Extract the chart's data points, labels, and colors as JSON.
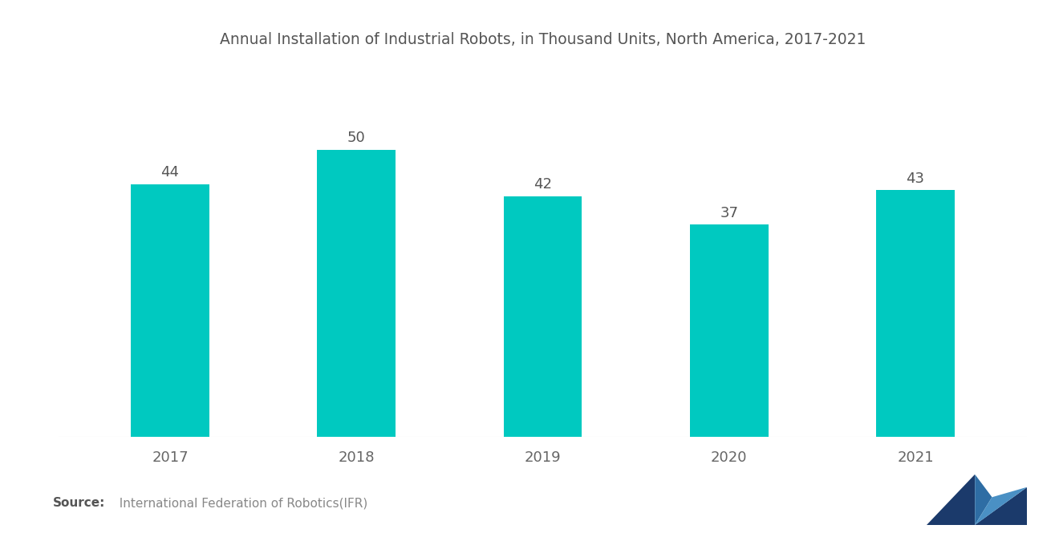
{
  "title": "Annual Installation of Industrial Robots, in Thousand Units, North America, 2017-2021",
  "categories": [
    "2017",
    "2018",
    "2019",
    "2020",
    "2021"
  ],
  "values": [
    44,
    50,
    42,
    37,
    43
  ],
  "bar_color": "#00C9C0",
  "background_color": "#FFFFFF",
  "title_color": "#555555",
  "label_color": "#666666",
  "value_label_color": "#555555",
  "source_bold": "Source:",
  "source_text": "  International Federation of Robotics(IFR)",
  "title_fontsize": 13.5,
  "tick_fontsize": 13,
  "value_fontsize": 13,
  "source_fontsize": 11,
  "bar_width": 0.42,
  "ylim": [
    0,
    65
  ]
}
